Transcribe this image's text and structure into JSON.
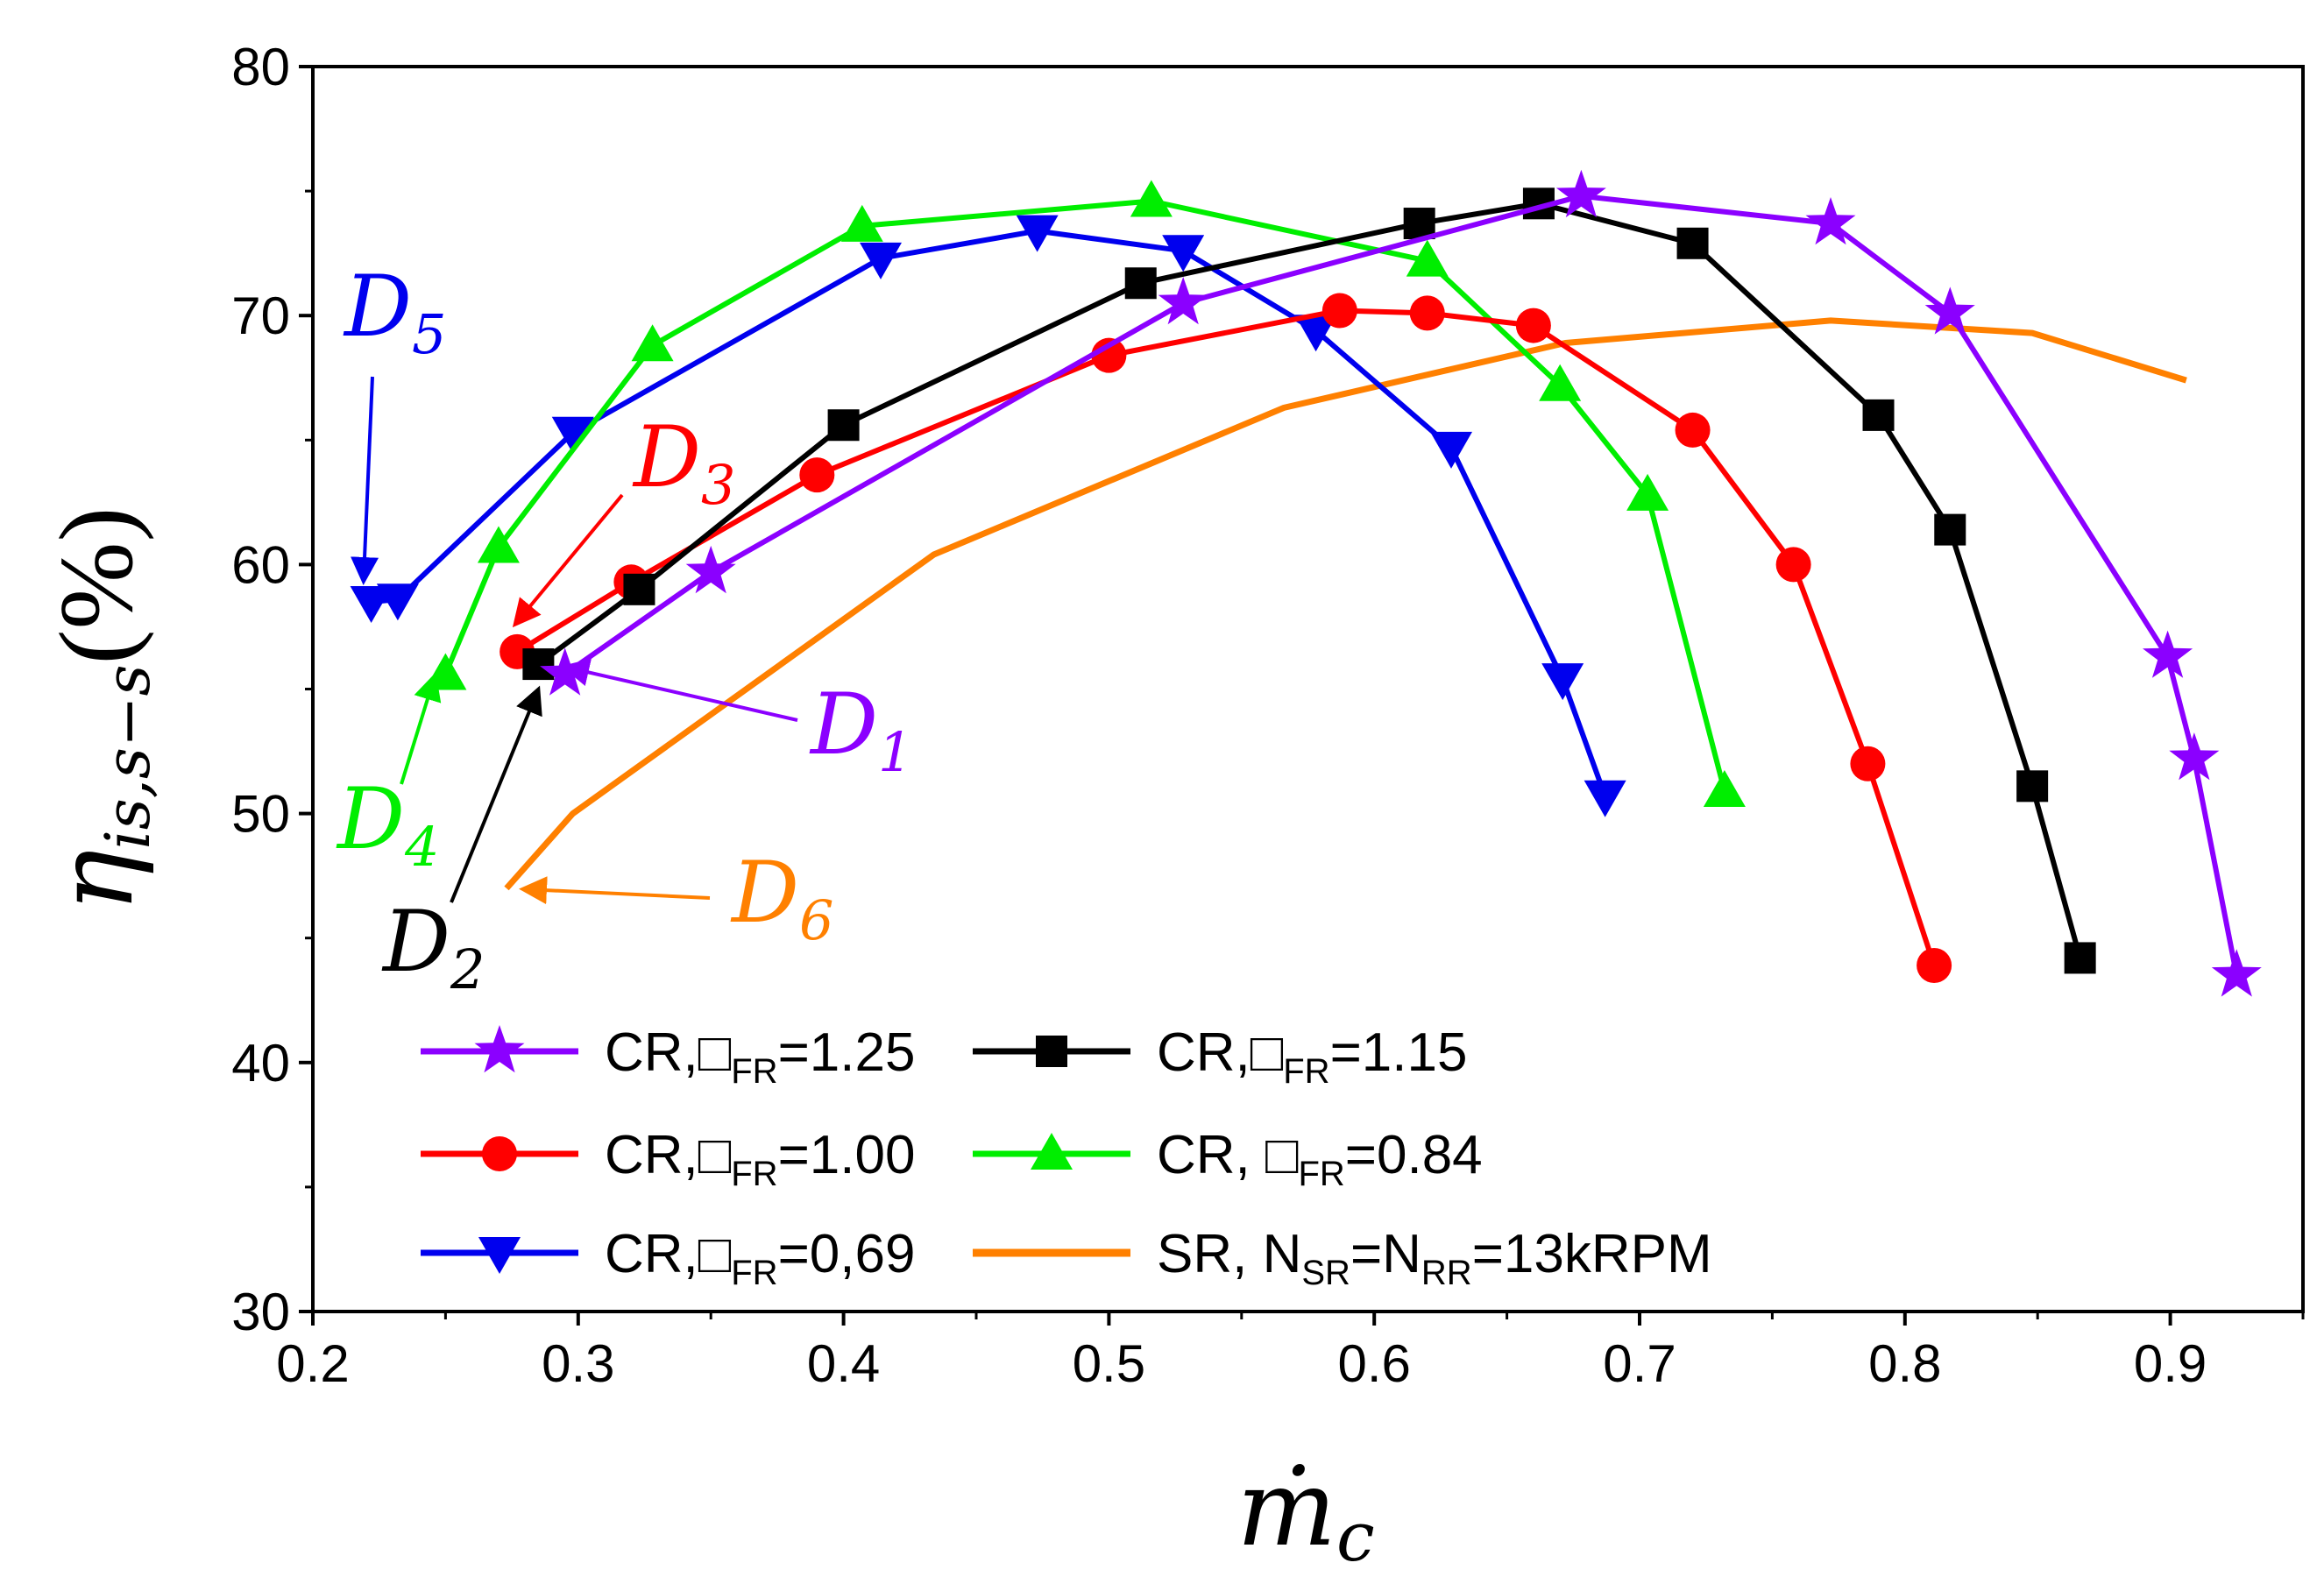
{
  "chart_data": {
    "type": "line",
    "title": "",
    "xlabel": "ṁ",
    "xlabel_sub": "c",
    "ylabel": "η",
    "ylabel_sub": "is,s−s",
    "ylabel_unit": "(%)",
    "xlim": [
      0.2,
      0.95
    ],
    "ylim": [
      30,
      80
    ],
    "xticks": [
      0.2,
      0.3,
      0.4,
      0.5,
      0.6,
      0.7,
      0.8,
      0.9
    ],
    "xtick_labels": [
      "0.2",
      "0.3",
      "0.4",
      "0.5",
      "0.6",
      "0.7",
      "0.8",
      "0.9"
    ],
    "yticks": [
      30,
      40,
      50,
      60,
      70,
      80
    ],
    "ytick_labels": [
      "30",
      "40",
      "50",
      "60",
      "70",
      "80"
    ],
    "grid": false,
    "legend_position": "bottom-left",
    "series": [
      {
        "name": "CR,□FR=1.25",
        "legend_main": "CR,□",
        "legend_sub": "FR",
        "legend_tail": "=1.25",
        "color": "#8B00FF",
        "marker": "star",
        "x": [
          0.295,
          0.35,
          0.528,
          0.678,
          0.772,
          0.817,
          0.899,
          0.909,
          0.925
        ],
        "y": [
          55.6,
          59.7,
          70.5,
          74.8,
          73.7,
          70.1,
          56.3,
          52.2,
          43.5
        ]
      },
      {
        "name": "CR,□FR=1.15",
        "legend_main": "CR,□",
        "legend_sub": "FR",
        "legend_tail": "=1.15",
        "color": "#000000",
        "marker": "square",
        "x": [
          0.285,
          0.323,
          0.4,
          0.512,
          0.617,
          0.662,
          0.72,
          0.79,
          0.817,
          0.848,
          0.866
        ],
        "y": [
          56.0,
          59.0,
          65.6,
          71.3,
          73.7,
          74.5,
          72.9,
          66.0,
          61.4,
          51.1,
          44.2
        ]
      },
      {
        "name": "CR,□FR=1.00",
        "legend_main": "CR,□",
        "legend_sub": "FR",
        "legend_tail": "=1.00",
        "color": "#FF0000",
        "marker": "circle",
        "x": [
          0.277,
          0.32,
          0.39,
          0.5,
          0.587,
          0.62,
          0.66,
          0.72,
          0.758,
          0.786,
          0.811
        ],
        "y": [
          56.5,
          59.3,
          63.6,
          68.4,
          70.2,
          70.1,
          69.6,
          65.4,
          60.0,
          52.0,
          43.9
        ]
      },
      {
        "name": "CR, □FR=0.84",
        "legend_main": "CR, □",
        "legend_sub": "FR",
        "legend_tail": "=0.84",
        "color": "#00EE00",
        "marker": "triangle-up",
        "x": [
          0.25,
          0.27,
          0.328,
          0.407,
          0.516,
          0.62,
          0.67,
          0.703,
          0.732
        ],
        "y": [
          55.6,
          60.7,
          68.8,
          73.6,
          74.6,
          72.2,
          67.2,
          62.8,
          50.9
        ]
      },
      {
        "name": "CR,□FR=0,69",
        "legend_main": "CR,□",
        "legend_sub": "FR",
        "legend_tail": "=0,69",
        "color": "#0000EE",
        "marker": "triangle-down",
        "x": [
          0.222,
          0.232,
          0.298,
          0.414,
          0.473,
          0.528,
          0.578,
          0.629,
          0.671,
          0.687
        ],
        "y": [
          58.5,
          58.6,
          65.3,
          72.3,
          73.4,
          72.6,
          69.4,
          64.7,
          55.4,
          50.7
        ]
      },
      {
        "name": "SR, NSR=NRR=13kRPM",
        "legend_main": "SR, N",
        "legend_sub": "SR",
        "legend_mid": "=N",
        "legend_sub2": "RR",
        "legend_tail": "=13kRPM",
        "color": "#FF8000",
        "marker": "none",
        "x": [
          0.273,
          0.298,
          0.434,
          0.566,
          0.672,
          0.772,
          0.848,
          0.906
        ],
        "y": [
          47.0,
          50.0,
          60.4,
          66.3,
          68.9,
          69.8,
          69.3,
          67.4
        ]
      }
    ],
    "annotations": [
      {
        "label": "D",
        "sub": "1",
        "color": "#8B00FF"
      },
      {
        "label": "D",
        "sub": "2",
        "color": "#000000"
      },
      {
        "label": "D",
        "sub": "3",
        "color": "#FF0000"
      },
      {
        "label": "D",
        "sub": "4",
        "color": "#00EE00"
      },
      {
        "label": "D",
        "sub": "5",
        "color": "#0000EE"
      },
      {
        "label": "D",
        "sub": "6",
        "color": "#FF8000"
      }
    ]
  }
}
